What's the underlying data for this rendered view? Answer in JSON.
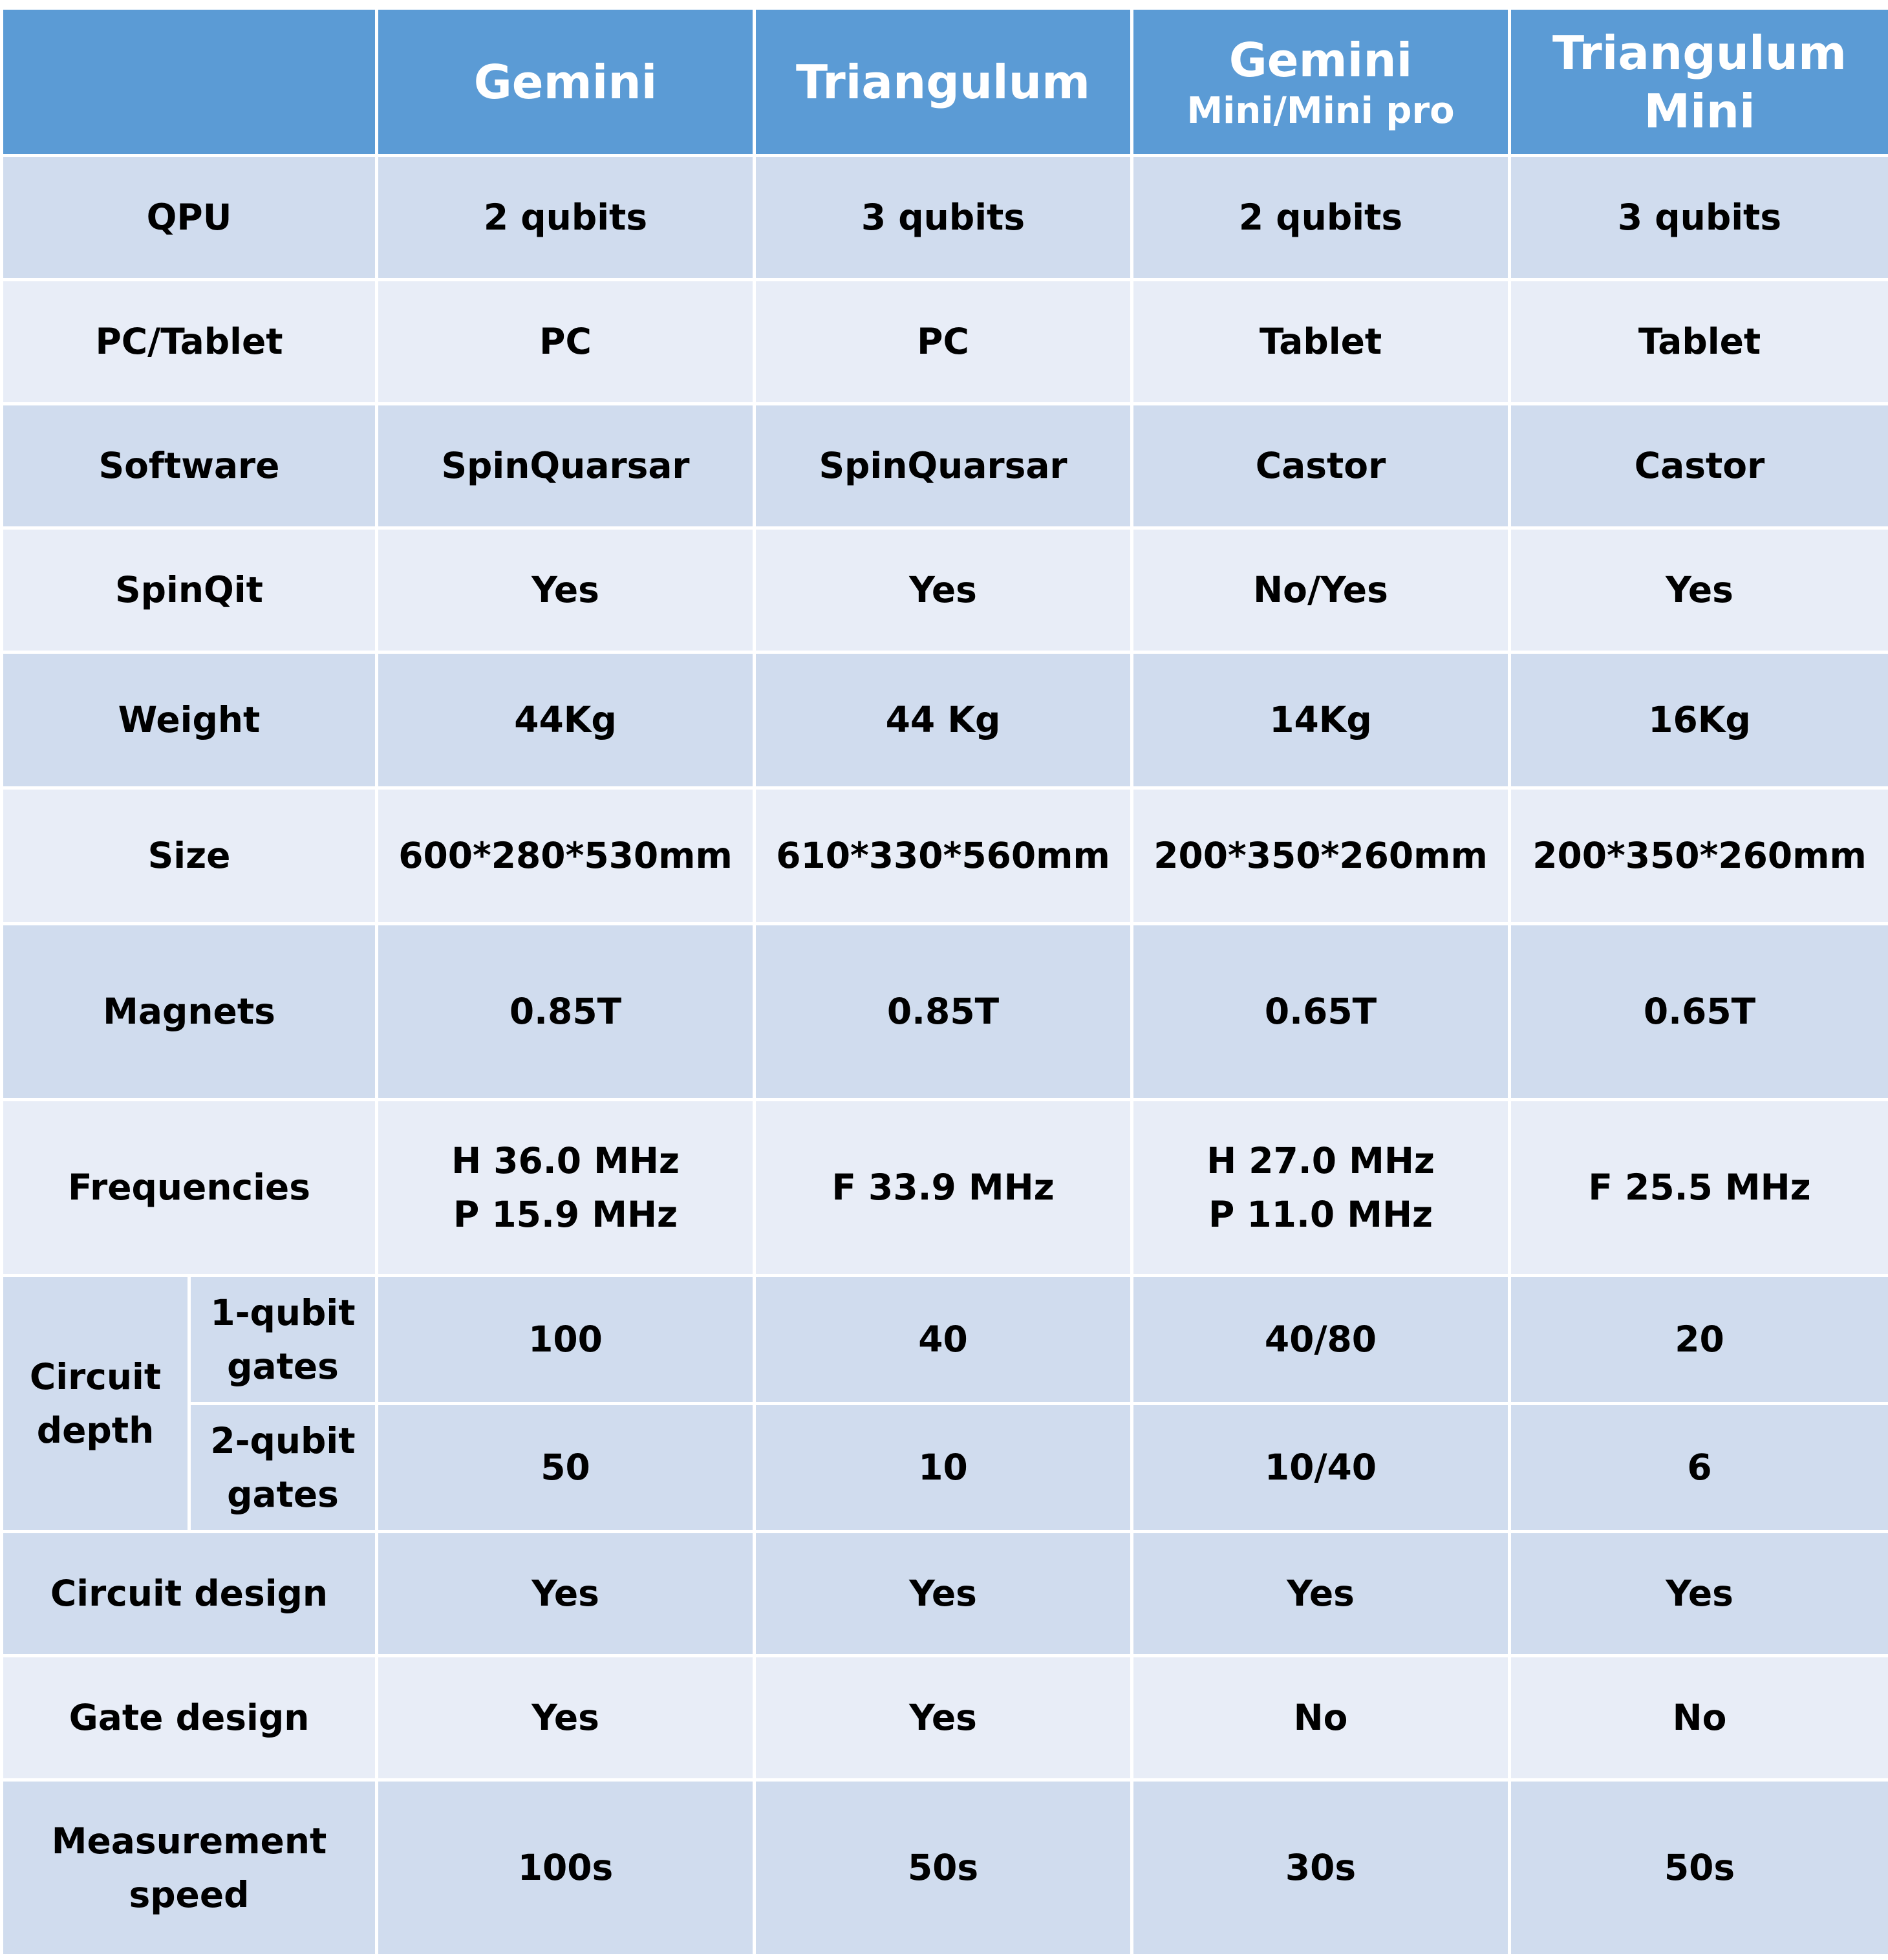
{
  "header": {
    "empty": "",
    "col1": "Gemini",
    "col2": "Triangulum",
    "col3_line1": "Gemini",
    "col3_line2": "Mini/Mini pro",
    "col4_line1": "Triangulum",
    "col4_line2": "Mini"
  },
  "rows": {
    "qpu": {
      "label": "QPU",
      "v": [
        "2 qubits",
        "3 qubits",
        "2 qubits",
        "3 qubits"
      ]
    },
    "pc": {
      "label": "PC/Tablet",
      "v": [
        "PC",
        "PC",
        "Tablet",
        "Tablet"
      ]
    },
    "software": {
      "label": "Software",
      "v": [
        "SpinQuarsar",
        "SpinQuarsar",
        "Castor",
        "Castor"
      ]
    },
    "spinqit": {
      "label": "SpinQit",
      "v": [
        "Yes",
        "Yes",
        "No/Yes",
        "Yes"
      ]
    },
    "weight": {
      "label": "Weight",
      "v": [
        "44Kg",
        "44 Kg",
        "14Kg",
        "16Kg"
      ]
    },
    "size": {
      "label": "Size",
      "v": [
        "600*280*530mm",
        "610*330*560mm",
        "200*350*260mm",
        "200*350*260mm"
      ]
    },
    "magnets": {
      "label": "Magnets",
      "v": [
        "0.85T",
        "0.85T",
        "0.65T",
        "0.65T"
      ]
    },
    "freq": {
      "label": "Frequencies",
      "c1_l1": "H 36.0 MHz",
      "c1_l2": "P 15.9 MHz",
      "c2": "F 33.9 MHz",
      "c3_l1": "H 27.0 MHz",
      "c3_l2": "P 11.0 MHz",
      "c4": "F 25.5 MHz"
    },
    "depth": {
      "label_l1": "Circuit",
      "label_l2": "depth",
      "one_l1": "1-qubit",
      "one_l2": "gates",
      "one_v": [
        "100",
        "40",
        "40/80",
        "20"
      ],
      "two_l1": "2-qubit",
      "two_l2": "gates",
      "two_v": [
        "50",
        "10",
        "10/40",
        "6"
      ]
    },
    "circuit_design": {
      "label": "Circuit design",
      "v": [
        "Yes",
        "Yes",
        "Yes",
        "Yes"
      ]
    },
    "gate_design": {
      "label": "Gate design",
      "v": [
        "Yes",
        "Yes",
        "No",
        "No"
      ]
    },
    "speed": {
      "label_l1": "Measurement",
      "label_l2": "speed",
      "v": [
        "100s",
        "50s",
        "30s",
        "50s"
      ]
    }
  }
}
